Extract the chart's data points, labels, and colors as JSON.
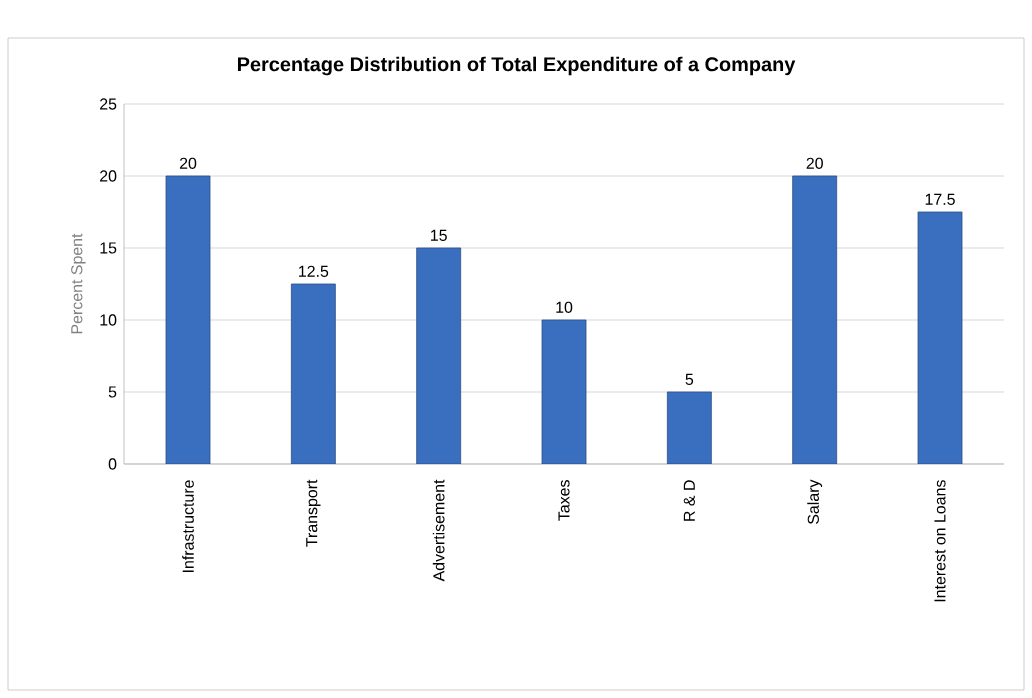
{
  "chart_data": {
    "type": "bar",
    "title": "Percentage Distribution of Total Expenditure of a Company",
    "ylabel": "Percent Spent",
    "categories": [
      "Infrastructure",
      "Transport",
      "Advertisement",
      "Taxes",
      "R & D",
      "Salary",
      "Interest on Loans"
    ],
    "values": [
      20,
      12.5,
      15,
      10,
      5,
      20,
      17.5
    ],
    "color": "#3a6fbf",
    "ylim": [
      0,
      25
    ],
    "yticks": [
      0,
      5,
      10,
      15,
      20,
      25
    ],
    "grid": "y",
    "data_labels": true
  }
}
